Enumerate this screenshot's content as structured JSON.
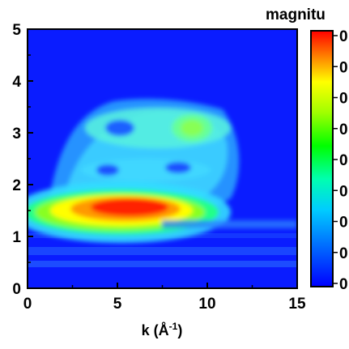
{
  "chart_data": {
    "type": "heatmap",
    "title": "",
    "xlabel": "k (Å⁻¹)",
    "xlabel_parts": {
      "text": "k (Å",
      "sup": "-1",
      "close": ")"
    },
    "ylabel": "",
    "xlim": [
      0,
      15
    ],
    "ylim": [
      0,
      5
    ],
    "x_ticks": [
      "0",
      "5",
      "10",
      "15"
    ],
    "y_ticks": [
      "0",
      "1",
      "2",
      "3",
      "4",
      "5"
    ],
    "colorbar": {
      "label": "magnitu",
      "tick_labels": [
        "0",
        "0",
        "0",
        "0",
        "0",
        "0",
        "0",
        "0",
        "0"
      ],
      "colors": [
        "#0000ff",
        "#0066ff",
        "#00ccff",
        "#00ffb0",
        "#00ff00",
        "#a0ff00",
        "#ffff00",
        "#ff8000",
        "#ff0000"
      ]
    },
    "hotspots": [
      {
        "k": 5.6,
        "r": 1.52,
        "magnitude": 1.0
      },
      {
        "k": 6.0,
        "r": 3.05,
        "magnitude": 0.55
      },
      {
        "k": 9.0,
        "r": 3.05,
        "magnitude": 0.65
      },
      {
        "k": 4.5,
        "r": 2.25,
        "magnitude": 0.45
      },
      {
        "k": 8.5,
        "r": 2.25,
        "magnitude": 0.45
      }
    ]
  }
}
